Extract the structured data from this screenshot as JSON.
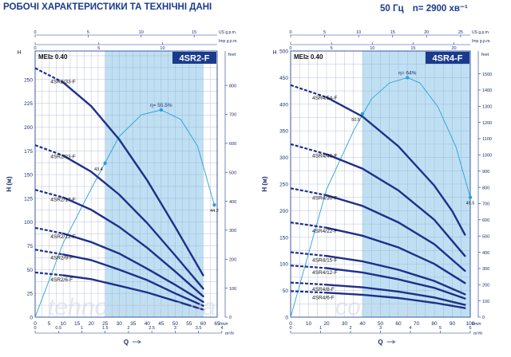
{
  "header": {
    "title": "РОБОЧІ ХАРАКТЕРИСТИКИ ТА ТЕХНІЧНІ ДАНІ",
    "frequency": "50 Гц",
    "speed": "n= 2900 хв⁻¹"
  },
  "watermark": "tehnosil.com.ua",
  "colors": {
    "curve": "#1f2f8a",
    "efficiency": "#2aa0dc",
    "band": "#bfe0f3",
    "axis": "#1a3a8c",
    "title_box": "#1a3a8c"
  },
  "chart_data": [
    {
      "type": "line",
      "title": "4SR2-F",
      "mei": "MEI≥ 0.40",
      "ylabel": "H (м)",
      "ylabel_right": "feet",
      "xlabel": "Q",
      "x_unit": "l/min",
      "x2_unit": "m³/h",
      "top_unit_1": "US g.p.m.",
      "top_unit_2": "Imp g.p.m.",
      "xlim": [
        0,
        65
      ],
      "ylim": [
        0,
        280
      ],
      "y2lim": [
        0,
        918.6
      ],
      "x_ticks": [
        0,
        5,
        10,
        15,
        20,
        25,
        30,
        35,
        40,
        45,
        50,
        55,
        60,
        65
      ],
      "x_tick_labels": [
        "0",
        "5",
        "10",
        "15",
        "20",
        "25",
        "30",
        "35",
        "40",
        "45",
        "50",
        "55",
        "60",
        "65"
      ],
      "y_ticks": [
        0,
        25,
        50,
        75,
        100,
        125,
        150,
        175,
        200,
        225,
        250
      ],
      "y_tick_labels": [
        "0",
        "25",
        "50",
        "75",
        "100",
        "125",
        "150",
        "175",
        "200",
        "225",
        "250"
      ],
      "y2_ticks": [
        0,
        100,
        200,
        300,
        400,
        500,
        600,
        700,
        800
      ],
      "y2_tick_labels": [
        "0",
        "100",
        "200",
        "300",
        "400",
        "500",
        "600",
        "700",
        "800"
      ],
      "x2_ticks": [
        0,
        0.5,
        1,
        1.5,
        2,
        2.5,
        3,
        3.5,
        4
      ],
      "x2_tick_labels": [
        "0",
        "0.5",
        "1",
        "1.5",
        "2",
        "2.5",
        "3",
        "3.5",
        "4"
      ],
      "top_us_ticks": [
        0,
        5,
        10,
        15
      ],
      "top_us_labels": [
        "0",
        "5",
        "10",
        "15"
      ],
      "top_imp_ticks": [
        0,
        5,
        10
      ],
      "top_imp_labels": [
        "0",
        "5",
        "10"
      ],
      "band": [
        25,
        60
      ],
      "series": [
        {
          "name": "4SR2/33-F",
          "label_x": 5.5,
          "points": [
            [
              0,
              262
            ],
            [
              10,
              247
            ],
            [
              20,
              222
            ],
            [
              30,
              187
            ],
            [
              40,
              144
            ],
            [
              50,
              95
            ],
            [
              60,
              44
            ]
          ]
        },
        {
          "name": "4SR2/23-F",
          "label_x": 5.5,
          "points": [
            [
              0,
              181
            ],
            [
              10,
              170
            ],
            [
              20,
              153
            ],
            [
              30,
              129
            ],
            [
              40,
              99
            ],
            [
              50,
              65
            ],
            [
              60,
              30
            ]
          ]
        },
        {
          "name": "4SR2/17-F",
          "label_x": 5.5,
          "points": [
            [
              0,
              134
            ],
            [
              10,
              126
            ],
            [
              20,
              113
            ],
            [
              30,
              95
            ],
            [
              40,
              73
            ],
            [
              50,
              48
            ],
            [
              60,
              22
            ]
          ]
        },
        {
          "name": "4SR2/12-F",
          "label_x": 5.5,
          "points": [
            [
              0,
              94
            ],
            [
              10,
              88
            ],
            [
              20,
              79
            ],
            [
              30,
              67
            ],
            [
              40,
              51
            ],
            [
              50,
              34
            ],
            [
              60,
              16
            ]
          ]
        },
        {
          "name": "4SR2/9-F",
          "label_x": 5.5,
          "points": [
            [
              0,
              71
            ],
            [
              10,
              66
            ],
            [
              20,
              60
            ],
            [
              30,
              50
            ],
            [
              40,
              39
            ],
            [
              50,
              25
            ],
            [
              60,
              12
            ]
          ]
        },
        {
          "name": "4SR2/6-F",
          "label_x": 5.5,
          "points": [
            [
              0,
              47
            ],
            [
              10,
              44
            ],
            [
              20,
              40
            ],
            [
              30,
              33
            ],
            [
              40,
              26
            ],
            [
              50,
              17
            ],
            [
              60,
              8
            ]
          ]
        }
      ],
      "efficiency": {
        "peak_label": "η= 55.5%",
        "points": [
          [
            0,
            0
          ],
          [
            10,
            78
          ],
          [
            20,
            135
          ],
          [
            30,
            190
          ],
          [
            38,
            213
          ],
          [
            45,
            218
          ],
          [
            52,
            208
          ],
          [
            58,
            180
          ],
          [
            63,
            128
          ],
          [
            64,
            118
          ]
        ],
        "markers": [
          {
            "x": 25,
            "y": 162,
            "label": "43.4"
          },
          {
            "x": 45,
            "y": 218,
            "label": ""
          },
          {
            "x": 64,
            "y": 118,
            "label": "44.2"
          }
        ]
      }
    },
    {
      "type": "line",
      "title": "4SR4-F",
      "mei": "MEI≥ 0.40",
      "ylabel": "H (м)",
      "ylabel_right": "feet",
      "xlabel": "Q",
      "x_unit": "l/min",
      "x2_unit": "m³/h",
      "top_unit_1": "US g.p.m.",
      "top_unit_2": "Imp g.p.m.",
      "xlim": [
        0,
        100
      ],
      "ylim": [
        0,
        500
      ],
      "y2lim": [
        0,
        1640.4
      ],
      "x_ticks": [
        0,
        10,
        20,
        30,
        40,
        50,
        60,
        70,
        80,
        90,
        100
      ],
      "x_tick_labels": [
        "0",
        "10",
        "20",
        "30",
        "40",
        "50",
        "60",
        "70",
        "80",
        "90",
        "100"
      ],
      "y_ticks": [
        0,
        50,
        100,
        150,
        200,
        250,
        300,
        350,
        400,
        450,
        500
      ],
      "y_tick_labels": [
        "0",
        "50",
        "100",
        "150",
        "200",
        "250",
        "300",
        "350",
        "400",
        "450",
        "500"
      ],
      "y2_ticks": [
        0,
        100,
        200,
        300,
        400,
        500,
        600,
        700,
        800,
        900,
        1000,
        1100,
        1200,
        1300,
        1400,
        1500
      ],
      "y2_tick_labels": [
        "0",
        "100",
        "200",
        "300",
        "400",
        "500",
        "600",
        "700",
        "800",
        "900",
        "1000",
        "1100",
        "1200",
        "1300",
        "1400",
        "1500"
      ],
      "x2_ticks": [
        0,
        1,
        2,
        3,
        4,
        5,
        6
      ],
      "x2_tick_labels": [
        "0",
        "1",
        "2",
        "3",
        "4",
        "5",
        "6"
      ],
      "top_us_ticks": [
        0,
        5,
        10,
        15,
        20,
        25
      ],
      "top_us_labels": [
        "0",
        "5",
        "10",
        "15",
        "20",
        "25"
      ],
      "top_imp_ticks": [
        0,
        5,
        10,
        15,
        20
      ],
      "top_imp_labels": [
        "0",
        "5",
        "10",
        "15",
        "20"
      ],
      "band": [
        40,
        100
      ],
      "series": [
        {
          "name": "4SR4/54-F",
          "label_x": 12,
          "points": [
            [
              0,
              436
            ],
            [
              20,
              413
            ],
            [
              40,
              377
            ],
            [
              60,
              321
            ],
            [
              80,
              247
            ],
            [
              90,
              199
            ],
            [
              97,
              155
            ]
          ]
        },
        {
          "name": "4SR4/40-F",
          "label_x": 12,
          "points": [
            [
              0,
              325
            ],
            [
              20,
              306
            ],
            [
              40,
              279
            ],
            [
              60,
              238
            ],
            [
              80,
              183
            ],
            [
              97,
              115
            ]
          ]
        },
        {
          "name": "4SR4/30-F",
          "label_x": 12,
          "points": [
            [
              0,
              242
            ],
            [
              20,
              229
            ],
            [
              40,
              209
            ],
            [
              60,
              178
            ],
            [
              80,
              137
            ],
            [
              97,
              87
            ]
          ]
        },
        {
          "name": "4SR4/22-F",
          "label_x": 12,
          "points": [
            [
              0,
              178
            ],
            [
              20,
              168
            ],
            [
              40,
              153
            ],
            [
              60,
              131
            ],
            [
              80,
              100
            ],
            [
              97,
              64
            ]
          ]
        },
        {
          "name": "4SR4/15-F",
          "label_x": 12,
          "points": [
            [
              0,
              122
            ],
            [
              20,
              115
            ],
            [
              40,
              105
            ],
            [
              60,
              89
            ],
            [
              80,
              68
            ],
            [
              97,
              43
            ]
          ]
        },
        {
          "name": "4SR4/12-F",
          "label_x": 12,
          "points": [
            [
              0,
              97
            ],
            [
              20,
              92
            ],
            [
              40,
              84
            ],
            [
              60,
              71
            ],
            [
              80,
              55
            ],
            [
              97,
              35
            ]
          ]
        },
        {
          "name": "4SR4/8-F",
          "label_x": 12,
          "points": [
            [
              0,
              65
            ],
            [
              20,
              61
            ],
            [
              40,
              56
            ],
            [
              60,
              48
            ],
            [
              80,
              37
            ],
            [
              97,
              23
            ]
          ]
        },
        {
          "name": "4SR4/6-F",
          "label_x": 12,
          "points": [
            [
              0,
              49
            ],
            [
              20,
              46
            ],
            [
              40,
              42
            ],
            [
              60,
              36
            ],
            [
              80,
              27
            ],
            [
              97,
              17
            ]
          ]
        }
      ],
      "efficiency": {
        "peak_label": "η= 64%",
        "points": [
          [
            0,
            0
          ],
          [
            20,
            240
          ],
          [
            35,
            350
          ],
          [
            45,
            410
          ],
          [
            55,
            440
          ],
          [
            65,
            450
          ],
          [
            72,
            440
          ],
          [
            82,
            395
          ],
          [
            92,
            320
          ],
          [
            100,
            225
          ]
        ],
        "markers": [
          {
            "x": 40,
            "y": 382,
            "label": "50.5"
          },
          {
            "x": 65,
            "y": 450,
            "label": ""
          },
          {
            "x": 100,
            "y": 225,
            "label": "45.5"
          }
        ]
      }
    }
  ]
}
